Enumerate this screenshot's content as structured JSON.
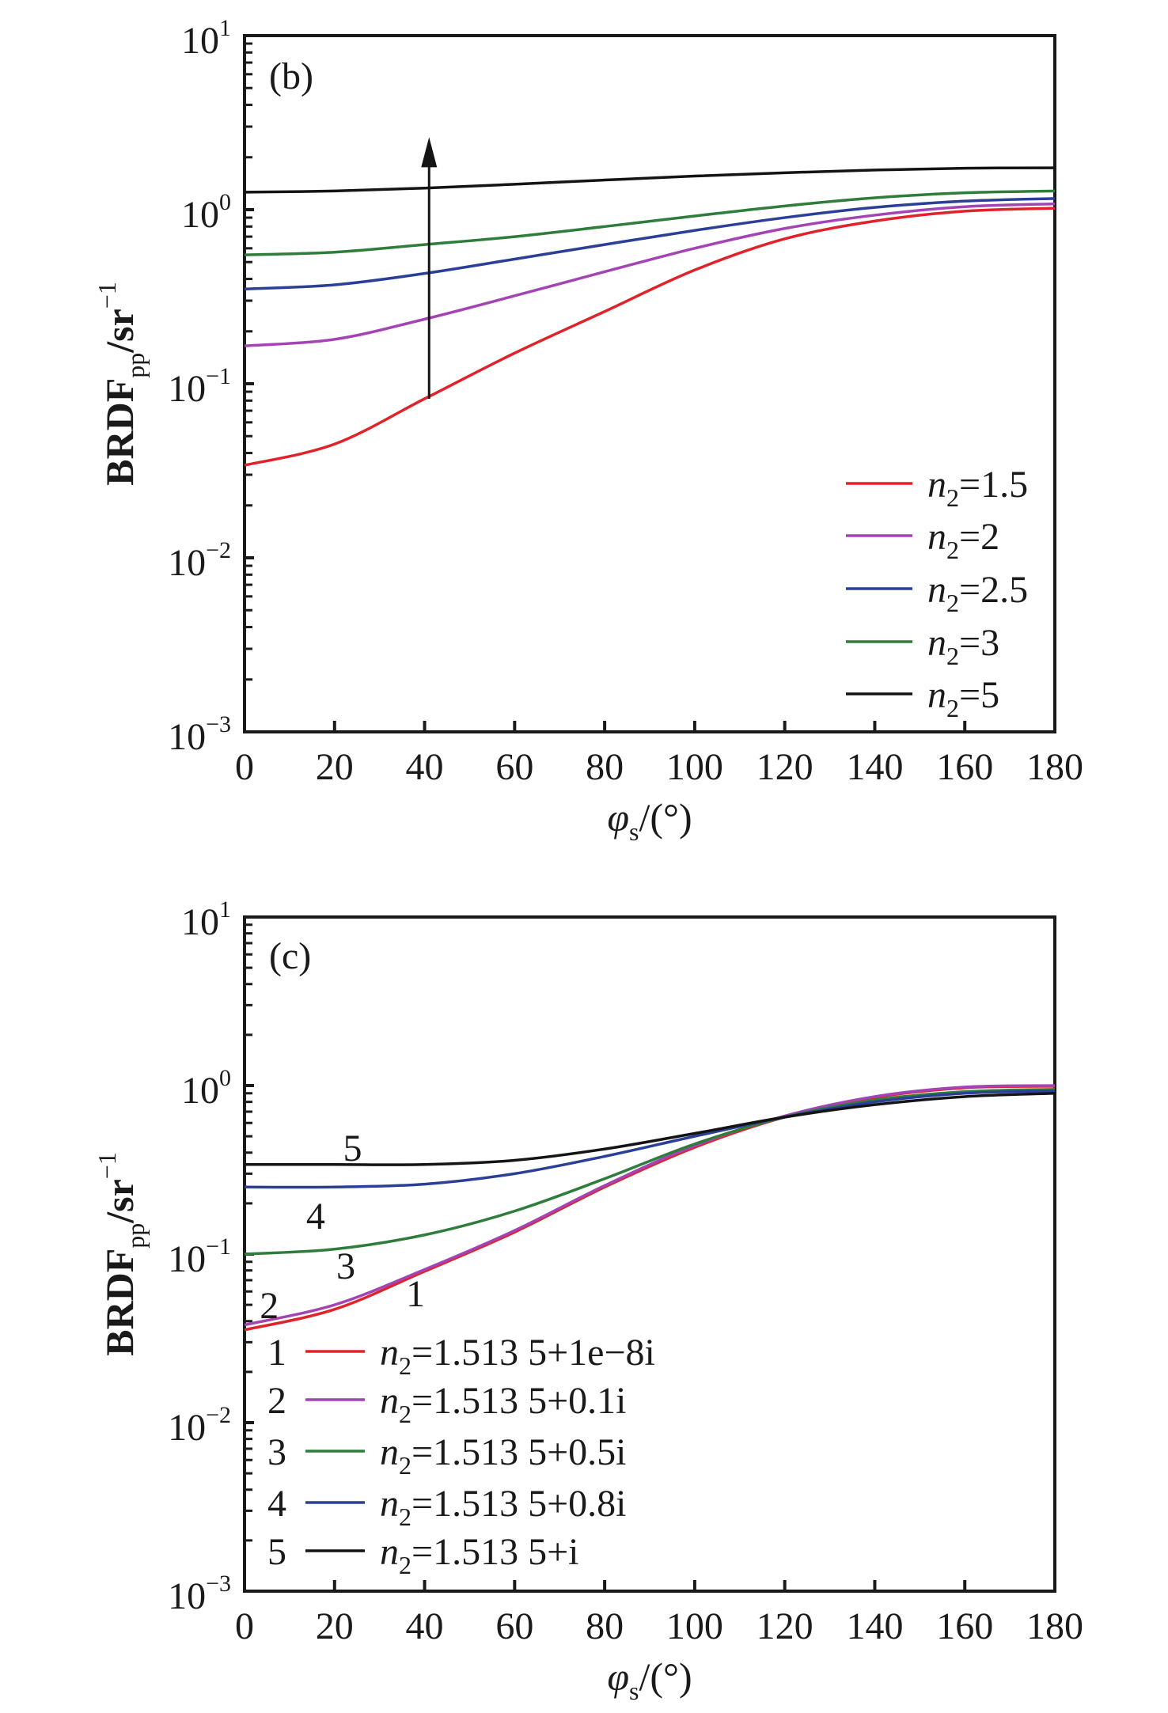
{
  "chart_data": [
    {
      "type": "line",
      "panel_label": "(b)",
      "yscale": "log",
      "xlim": [
        0,
        180
      ],
      "ylim": [
        0.001,
        10
      ],
      "x": [
        0,
        20,
        40,
        60,
        80,
        100,
        120,
        140,
        160,
        180
      ],
      "xticks": [
        "0",
        "20",
        "40",
        "60",
        "80",
        "100",
        "120",
        "140",
        "160",
        "180"
      ],
      "ytick_base": "10",
      "ytick_exponents": [
        "−3",
        "−2",
        "−1",
        "0",
        "1"
      ],
      "xlabel": {
        "symbol": "φ",
        "sub": "s",
        "rest": "/(°)"
      },
      "ylabel": {
        "main": "BRDF",
        "sub": "pp",
        "rest": "/sr",
        "sup": "−1"
      },
      "legend_position": "right",
      "grid": false,
      "series": [
        {
          "name_var": "n",
          "name_sub": "2",
          "name_value": "=1.5",
          "color": "#e0222b",
          "values": [
            0.034,
            0.045,
            0.082,
            0.15,
            0.26,
            0.45,
            0.68,
            0.86,
            0.98,
            1.02
          ]
        },
        {
          "name_var": "n",
          "name_sub": "2",
          "name_value": "=2",
          "color": "#a444b4",
          "values": [
            0.165,
            0.18,
            0.235,
            0.32,
            0.44,
            0.6,
            0.78,
            0.93,
            1.04,
            1.08
          ]
        },
        {
          "name_var": "n",
          "name_sub": "2",
          "name_value": "=2.5",
          "color": "#2b3f98",
          "values": [
            0.35,
            0.37,
            0.43,
            0.52,
            0.63,
            0.76,
            0.9,
            1.03,
            1.12,
            1.16
          ]
        },
        {
          "name_var": "n",
          "name_sub": "2",
          "name_value": "=3",
          "color": "#2f7d3b",
          "values": [
            0.55,
            0.57,
            0.63,
            0.7,
            0.8,
            0.92,
            1.05,
            1.17,
            1.25,
            1.28
          ]
        },
        {
          "name_var": "n",
          "name_sub": "2",
          "name_value": "=5",
          "color": "#141414",
          "values": [
            1.26,
            1.28,
            1.33,
            1.4,
            1.48,
            1.56,
            1.63,
            1.69,
            1.73,
            1.74
          ]
        }
      ],
      "annotations": [
        {
          "type": "arrow",
          "x": 41,
          "y_from": 0.082,
          "y_to": 2.4,
          "direction": "up",
          "color": "#141414"
        }
      ]
    },
    {
      "type": "line",
      "panel_label": "(c)",
      "yscale": "log",
      "xlim": [
        0,
        180
      ],
      "ylim": [
        0.001,
        10
      ],
      "x": [
        0,
        20,
        40,
        60,
        80,
        100,
        120,
        140,
        160,
        180
      ],
      "xticks": [
        "0",
        "20",
        "40",
        "60",
        "80",
        "100",
        "120",
        "140",
        "160",
        "180"
      ],
      "ytick_base": "10",
      "ytick_exponents": [
        "−3",
        "−2",
        "−1",
        "0",
        "1"
      ],
      "xlabel": {
        "symbol": "φ",
        "sub": "s",
        "rest": "/(°)"
      },
      "ylabel": {
        "main": "BRDF",
        "sub": "pp",
        "rest": "/sr",
        "sup": "−1"
      },
      "legend_position": "bottom-left",
      "grid": false,
      "series": [
        {
          "number": "1",
          "name_var": "n",
          "name_sub": "2",
          "name_value": "=1.513 5+1e−8i",
          "color": "#e0222b",
          "values": [
            0.0355,
            0.047,
            0.079,
            0.135,
            0.25,
            0.43,
            0.65,
            0.85,
            0.97,
            0.99
          ],
          "curve_label": {
            "x": 38,
            "y": 0.059
          }
        },
        {
          "number": "2",
          "name_var": "n",
          "name_sub": "2",
          "name_value": "=1.513 5+0.1i",
          "color": "#a444b4",
          "values": [
            0.038,
            0.05,
            0.081,
            0.138,
            0.255,
            0.44,
            0.66,
            0.86,
            0.98,
            1.0
          ],
          "curve_label": {
            "x": 5.5,
            "y": 0.05
          }
        },
        {
          "number": "3",
          "name_var": "n",
          "name_sub": "2",
          "name_value": "=1.513 5+0.5i",
          "color": "#2f7d3b",
          "values": [
            0.1,
            0.107,
            0.13,
            0.18,
            0.28,
            0.45,
            0.65,
            0.82,
            0.92,
            0.95
          ],
          "curve_label": {
            "x": 22.5,
            "y": 0.086
          }
        },
        {
          "number": "4",
          "name_var": "n",
          "name_sub": "2",
          "name_value": "=1.513 5+0.8i",
          "color": "#2b3f98",
          "values": [
            0.25,
            0.25,
            0.26,
            0.3,
            0.38,
            0.5,
            0.65,
            0.8,
            0.9,
            0.93
          ],
          "curve_label": {
            "x": 15.8,
            "y": 0.17
          }
        },
        {
          "number": "5",
          "name_var": "n",
          "name_sub": "2",
          "name_value": "=1.513 5+i",
          "color": "#141414",
          "values": [
            0.34,
            0.34,
            0.34,
            0.36,
            0.42,
            0.52,
            0.65,
            0.77,
            0.86,
            0.9
          ],
          "curve_label": {
            "x": 24,
            "y": 0.43
          }
        }
      ],
      "annotations": []
    }
  ]
}
